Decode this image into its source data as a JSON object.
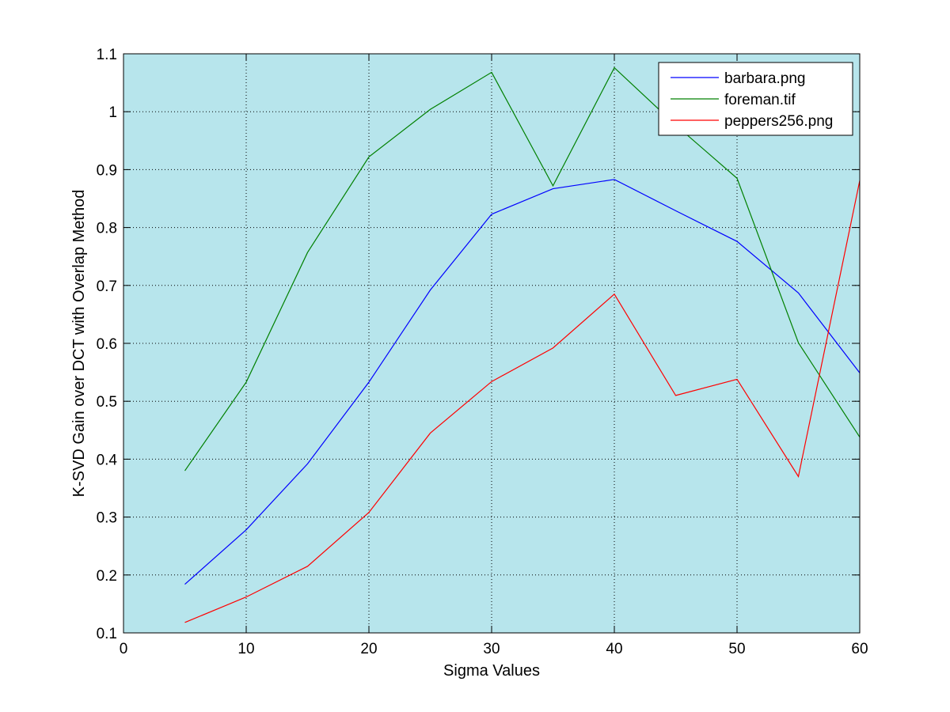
{
  "chart_data": {
    "type": "line",
    "title": "",
    "xlabel": "Sigma Values",
    "ylabel": "K-SVD Gain over DCT with Overlap Method",
    "xlim": [
      0,
      60
    ],
    "ylim": [
      0.1,
      1.1
    ],
    "xticks": [
      "0",
      "10",
      "20",
      "30",
      "40",
      "50",
      "60"
    ],
    "yticks": [
      "0.1",
      "0.2",
      "0.3",
      "0.4",
      "0.5",
      "0.6",
      "0.7",
      "0.8",
      "0.9",
      "1",
      "1.1"
    ],
    "grid": true,
    "legend_position": "top-right",
    "background": "#b7e5ec",
    "x": [
      5,
      10,
      15,
      20,
      25,
      30,
      35,
      40,
      45,
      50,
      55,
      60
    ],
    "series": [
      {
        "name": "barbara.png",
        "color": "#0000ff",
        "values": [
          0.184,
          0.278,
          0.392,
          0.533,
          0.692,
          0.823,
          0.867,
          0.883,
          0.829,
          0.776,
          0.687,
          0.549
        ]
      },
      {
        "name": "foreman.tif",
        "color": "#008000",
        "values": [
          0.38,
          0.533,
          0.757,
          0.922,
          1.004,
          1.068,
          0.872,
          1.076,
          0.977,
          0.885,
          0.601,
          0.438
        ]
      },
      {
        "name": "peppers256.png",
        "color": "#ff0000",
        "values": [
          0.118,
          0.162,
          0.215,
          0.308,
          0.445,
          0.534,
          0.592,
          0.685,
          0.51,
          0.538,
          0.37,
          0.881
        ]
      }
    ]
  }
}
